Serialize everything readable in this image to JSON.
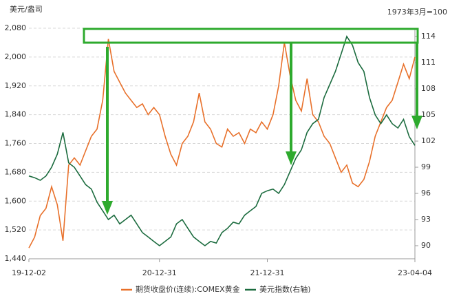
{
  "chart_data": {
    "type": "line",
    "y_label": "美元/盎司",
    "y2_label": "1973年3月=100",
    "categories": [
      "19-12-02",
      null,
      null,
      null,
      null,
      null,
      null,
      null,
      null,
      null,
      null,
      null,
      null,
      null,
      null,
      null,
      null,
      null,
      null,
      null,
      null,
      null,
      null,
      "20-12-31",
      null,
      null,
      null,
      null,
      null,
      null,
      null,
      null,
      null,
      null,
      null,
      null,
      null,
      null,
      null,
      null,
      null,
      null,
      "21-12-31",
      null,
      null,
      null,
      null,
      null,
      null,
      null,
      null,
      null,
      null,
      null,
      null,
      null,
      null,
      null,
      null,
      null,
      null,
      null,
      null,
      null,
      null,
      null,
      null,
      null,
      "23-04-04"
    ],
    "series": [
      {
        "name": "期货收盘价(连续):COMEX黄金",
        "color": "#e8702a",
        "axis": "y",
        "values": [
          1470,
          1500,
          1560,
          1580,
          1640,
          1590,
          1490,
          1700,
          1720,
          1700,
          1740,
          1780,
          1800,
          1880,
          2050,
          1960,
          1930,
          1900,
          1880,
          1860,
          1870,
          1840,
          1860,
          1840,
          1780,
          1730,
          1700,
          1760,
          1780,
          1820,
          1900,
          1820,
          1800,
          1760,
          1750,
          1800,
          1780,
          1790,
          1760,
          1800,
          1790,
          1820,
          1800,
          1840,
          1920,
          2040,
          1950,
          1880,
          1850,
          1940,
          1840,
          1820,
          1780,
          1760,
          1720,
          1680,
          1700,
          1650,
          1640,
          1660,
          1710,
          1780,
          1820,
          1860,
          1880,
          1930,
          1980,
          1940,
          2000
        ]
      },
      {
        "name": "美元指数(右轴)",
        "color": "#1b6b3e",
        "axis": "y2",
        "values": [
          98,
          97.8,
          97.5,
          98,
          99,
          100.5,
          103,
          99.5,
          99,
          98,
          97,
          96.5,
          95,
          94,
          93,
          93.5,
          92.5,
          93,
          93.5,
          92.5,
          91.5,
          91,
          90.5,
          90,
          90.5,
          91,
          92.5,
          93,
          92,
          91,
          90.5,
          90,
          90.5,
          90.3,
          91.5,
          92,
          92.7,
          92.5,
          93.5,
          94,
          94.5,
          96,
          96.3,
          96.5,
          96,
          97,
          98.5,
          100,
          101,
          103,
          104,
          104.5,
          107,
          108.5,
          110,
          112,
          114,
          113,
          111,
          110,
          107,
          105,
          104,
          105,
          104,
          103.5,
          104.5,
          102.5,
          101.5
        ]
      }
    ],
    "ylim": [
      1440,
      2080
    ],
    "yticks": [
      {
        "value": 1440,
        "label": "1,440"
      },
      {
        "value": 1520,
        "label": "1,520"
      },
      {
        "value": 1600,
        "label": "1,600"
      },
      {
        "value": 1680,
        "label": "1,680"
      },
      {
        "value": 1760,
        "label": "1,760"
      },
      {
        "value": 1840,
        "label": "1,840"
      },
      {
        "value": 1920,
        "label": "1,920"
      },
      {
        "value": 2000,
        "label": "2,000"
      },
      {
        "value": 2080,
        "label": "2,080"
      }
    ],
    "y2lim": [
      88.5,
      114.95
    ],
    "y2ticks": [
      90,
      93,
      96,
      99,
      102,
      105,
      108,
      111,
      114
    ],
    "grid": true
  }
}
